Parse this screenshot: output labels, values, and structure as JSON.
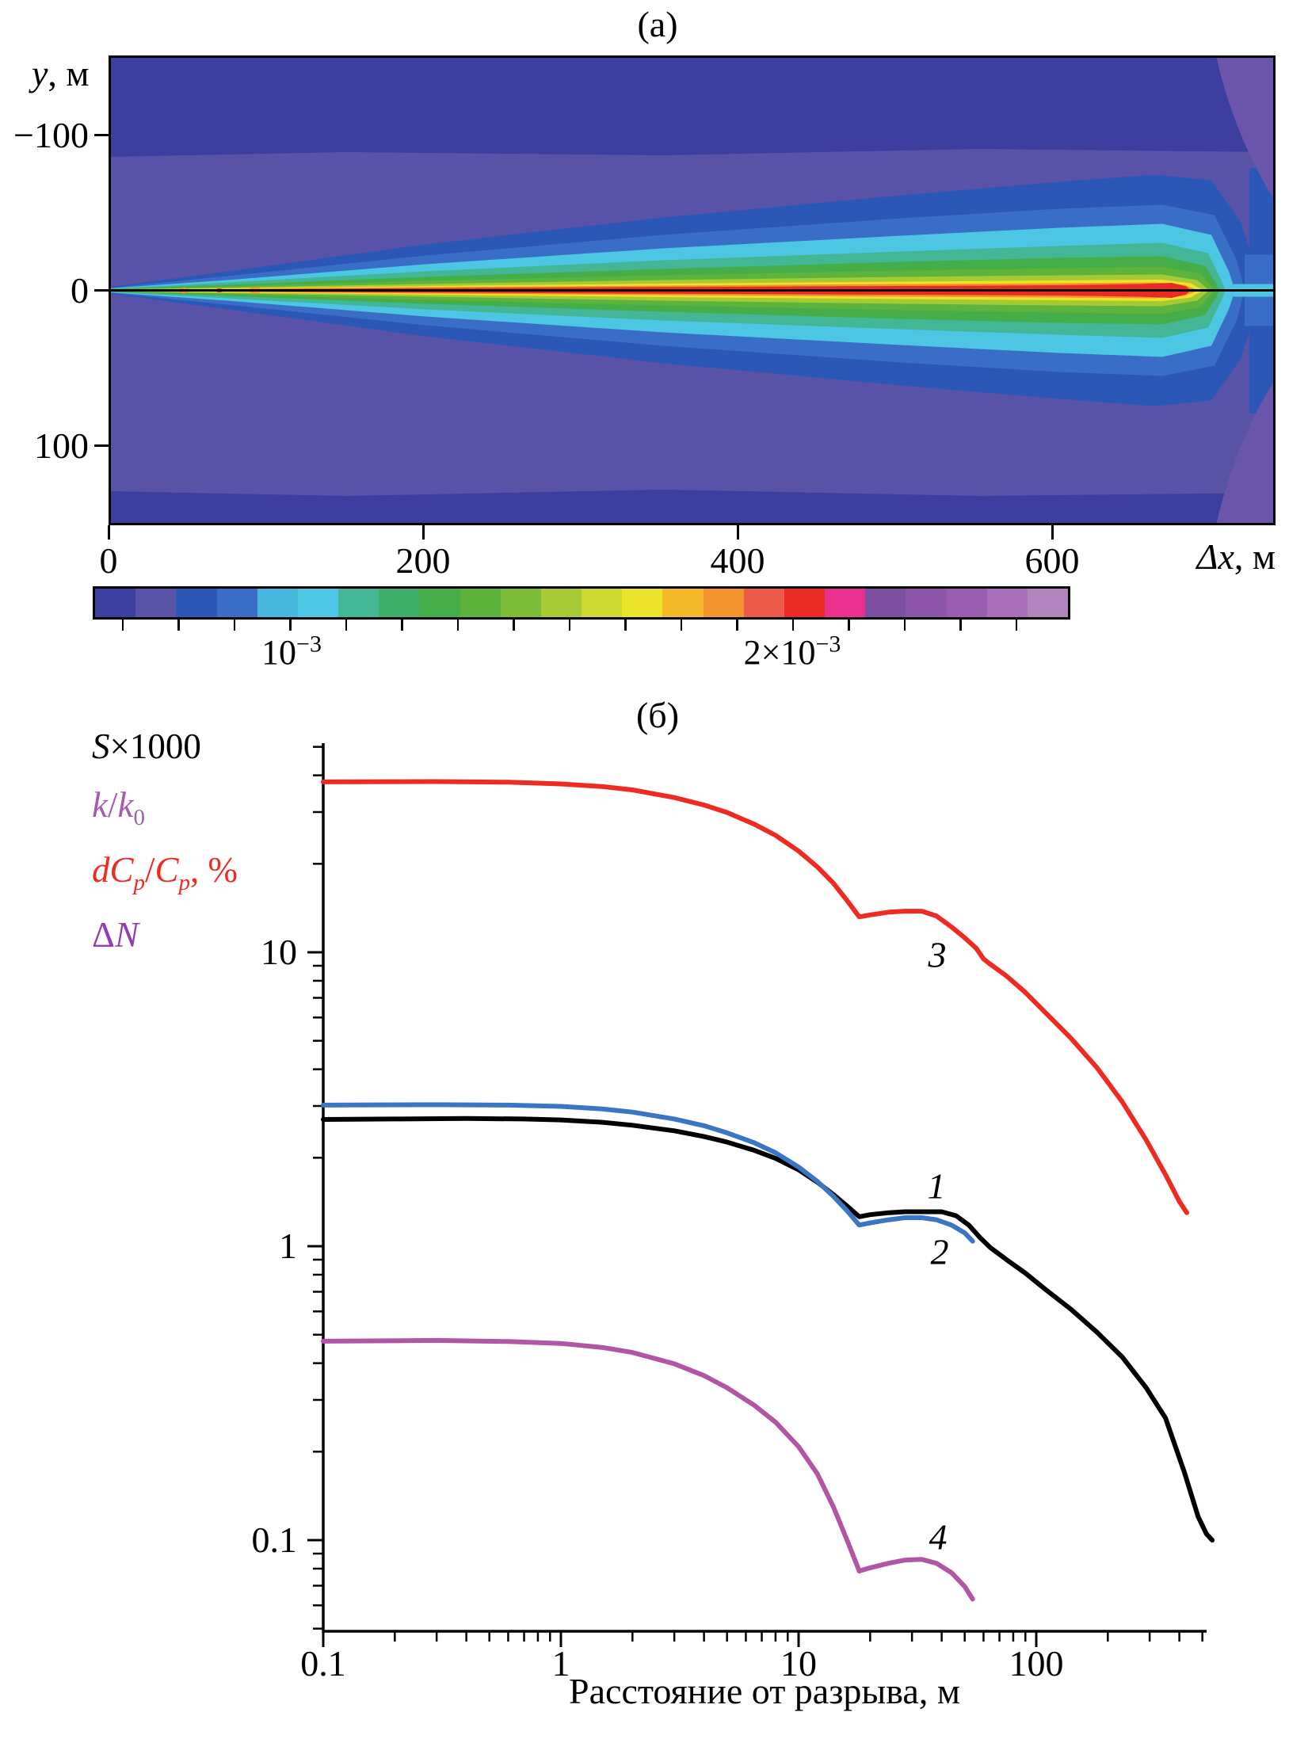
{
  "figure": {
    "panel_a": {
      "title": "(а)",
      "y_axis": {
        "label_var": "y",
        "label_rest": ", м",
        "ticks": [
          "−100",
          "0",
          "100"
        ]
      },
      "x_axis": {
        "label_var": "Δx",
        "label_rest": ", м",
        "ticks": [
          "0",
          "200",
          "400",
          "600"
        ]
      },
      "colorbar": {
        "colors": [
          "#3d3f9e",
          "#5953a8",
          "#2b57b6",
          "#3a6ec6",
          "#47b7dd",
          "#4cc6e3",
          "#43b695",
          "#3fae6a",
          "#45ae49",
          "#5db33b",
          "#7cbc37",
          "#a7c934",
          "#cdd830",
          "#ece32b",
          "#f5ba2a",
          "#f2932d",
          "#ee5a49",
          "#e92b24",
          "#e9308f",
          "#7c4fa0",
          "#8c55a9",
          "#9a5cb0",
          "#a86fb8",
          "#b184be"
        ],
        "corner_purple": "#6a55ab",
        "label1": {
          "base": "10",
          "sup": "−3"
        },
        "label2": {
          "base": "2×10",
          "sup": "−3"
        }
      }
    },
    "panel_b": {
      "title": "(б)",
      "legend": [
        {
          "i1": "S",
          "r1": "×1000",
          "color": "#000000"
        },
        {
          "i1": "k",
          "r1": "/",
          "i2": "k",
          "s2": "0",
          "color": "#a55ab4"
        },
        {
          "i1": "dC",
          "s1": "p",
          "r1": "/",
          "i2": "C",
          "s2": "p",
          "r2": ", %",
          "color": "#ee2b22"
        },
        {
          "r0": "Δ",
          "i1": "N",
          "color": "#8f3fb3"
        }
      ],
      "x_axis": {
        "label": "Расстояние от разрыва, м",
        "ticks": [
          "0.1",
          "1",
          "10",
          "100"
        ],
        "tick_values": [
          0.1,
          1,
          10,
          100
        ]
      },
      "y_axis": {
        "ticks": [
          "10",
          "1",
          "0.1"
        ],
        "tick_values": [
          10,
          1,
          0.1
        ]
      },
      "curve_labels": [
        "1",
        "2",
        "3",
        "4"
      ]
    }
  },
  "chart_data": [
    {
      "type": "heatmap",
      "title": "(а)",
      "xlabel": "Δx, м",
      "ylabel": "y, м",
      "x_ticks": [
        0,
        200,
        400,
        600
      ],
      "x_range": [
        0,
        740
      ],
      "y_ticks": [
        -100,
        0,
        100
      ],
      "y_range": [
        -150,
        150
      ],
      "colorbar_labels": [
        "10⁻³",
        "2×10⁻³"
      ],
      "description": "Contour map of a quantity around a horizontal fracture at y=0 extending from x=0 to x≈690 м; nested contour bands (blue→cyan→green→yellow→orange→red) hug the fracture line, widening toward the fracture tip near x≈690 м, with a thin cyan jet continuing beyond the tip."
    },
    {
      "type": "line",
      "title": "(б)",
      "xlabel": "Расстояние от разрыва, м",
      "ylabel": "",
      "x_scale": "log",
      "y_scale": "log",
      "xlim": [
        0.1,
        500
      ],
      "ylim": [
        0.05,
        52
      ],
      "series": [
        {
          "name": "S×1000",
          "label": "1",
          "color": "#000000",
          "points": [
            [
              0.1,
              2.7
            ],
            [
              0.2,
              2.71
            ],
            [
              0.4,
              2.72
            ],
            [
              0.7,
              2.71
            ],
            [
              1,
              2.69
            ],
            [
              1.5,
              2.64
            ],
            [
              2,
              2.58
            ],
            [
              3,
              2.47
            ],
            [
              4,
              2.36
            ],
            [
              5,
              2.26
            ],
            [
              6.5,
              2.12
            ],
            [
              8,
              1.99
            ],
            [
              10,
              1.82
            ],
            [
              12,
              1.65
            ],
            [
              14,
              1.5
            ],
            [
              16,
              1.37
            ],
            [
              18,
              1.26
            ],
            [
              20,
              1.28
            ],
            [
              24,
              1.3
            ],
            [
              28,
              1.31
            ],
            [
              33,
              1.31
            ],
            [
              40,
              1.31
            ],
            [
              46,
              1.27
            ],
            [
              52,
              1.18
            ],
            [
              58,
              1.07
            ],
            [
              64,
              0.99
            ],
            [
              75,
              0.9
            ],
            [
              90,
              0.81
            ],
            [
              110,
              0.71
            ],
            [
              140,
              0.61
            ],
            [
              180,
              0.51
            ],
            [
              230,
              0.42
            ],
            [
              290,
              0.33
            ],
            [
              350,
              0.26
            ],
            [
              420,
              0.17
            ],
            [
              480,
              0.12
            ],
            [
              520,
              0.105
            ],
            [
              550,
              0.1
            ]
          ]
        },
        {
          "name": "k/k0",
          "label": "2",
          "color": "#3a76c3",
          "points": [
            [
              0.1,
              3.02
            ],
            [
              0.3,
              3.03
            ],
            [
              0.6,
              3.02
            ],
            [
              1,
              2.99
            ],
            [
              1.5,
              2.93
            ],
            [
              2,
              2.86
            ],
            [
              3,
              2.71
            ],
            [
              4,
              2.57
            ],
            [
              5,
              2.43
            ],
            [
              6.5,
              2.25
            ],
            [
              8,
              2.08
            ],
            [
              10,
              1.86
            ],
            [
              12,
              1.66
            ],
            [
              14,
              1.48
            ],
            [
              16,
              1.32
            ],
            [
              18,
              1.18
            ],
            [
              20,
              1.2
            ],
            [
              24,
              1.23
            ],
            [
              28,
              1.25
            ],
            [
              33,
              1.25
            ],
            [
              38,
              1.23
            ],
            [
              44,
              1.18
            ],
            [
              50,
              1.11
            ],
            [
              54,
              1.04
            ]
          ]
        },
        {
          "name": "dCp/Cp, %",
          "label": "3",
          "color": "#ee2b22",
          "points": [
            [
              0.1,
              38.0
            ],
            [
              0.3,
              38.1
            ],
            [
              0.6,
              37.9
            ],
            [
              1,
              37.4
            ],
            [
              1.5,
              36.6
            ],
            [
              2,
              35.7
            ],
            [
              3,
              33.6
            ],
            [
              4,
              31.7
            ],
            [
              5,
              29.9
            ],
            [
              6.5,
              27.3
            ],
            [
              8,
              25.0
            ],
            [
              10,
              22.1
            ],
            [
              12,
              19.5
            ],
            [
              14,
              17.2
            ],
            [
              16,
              15.0
            ],
            [
              18,
              13.2
            ],
            [
              20,
              13.4
            ],
            [
              24,
              13.7
            ],
            [
              28,
              13.8
            ],
            [
              33,
              13.8
            ],
            [
              38,
              13.3
            ],
            [
              44,
              12.2
            ],
            [
              50,
              11.2
            ],
            [
              56,
              10.3
            ],
            [
              60,
              9.5
            ],
            [
              63,
              9.2
            ],
            [
              75,
              8.3
            ],
            [
              90,
              7.3
            ],
            [
              110,
              6.2
            ],
            [
              140,
              5.1
            ],
            [
              180,
              4.05
            ],
            [
              230,
              3.1
            ],
            [
              290,
              2.3
            ],
            [
              350,
              1.75
            ],
            [
              400,
              1.42
            ],
            [
              430,
              1.3
            ]
          ]
        },
        {
          "name": "ΔN",
          "label": "4",
          "color": "#b156a4",
          "points": [
            [
              0.1,
              0.475
            ],
            [
              0.3,
              0.478
            ],
            [
              0.6,
              0.474
            ],
            [
              1,
              0.467
            ],
            [
              1.5,
              0.452
            ],
            [
              2,
              0.435
            ],
            [
              3,
              0.398
            ],
            [
              4,
              0.363
            ],
            [
              5,
              0.33
            ],
            [
              6.5,
              0.288
            ],
            [
              8,
              0.252
            ],
            [
              10,
              0.208
            ],
            [
              12,
              0.168
            ],
            [
              14,
              0.13
            ],
            [
              16,
              0.1
            ],
            [
              18,
              0.0785
            ],
            [
              20,
              0.0805
            ],
            [
              24,
              0.0835
            ],
            [
              28,
              0.0855
            ],
            [
              33,
              0.086
            ],
            [
              38,
              0.0835
            ],
            [
              44,
              0.0775
            ],
            [
              50,
              0.0695
            ],
            [
              54,
              0.063
            ]
          ]
        }
      ],
      "legend_entries": [
        "S×1000",
        "k/k₀",
        "dCp/Cp, %",
        "ΔN"
      ],
      "legend_position": "upper left, outside axis",
      "grid": false
    }
  ]
}
